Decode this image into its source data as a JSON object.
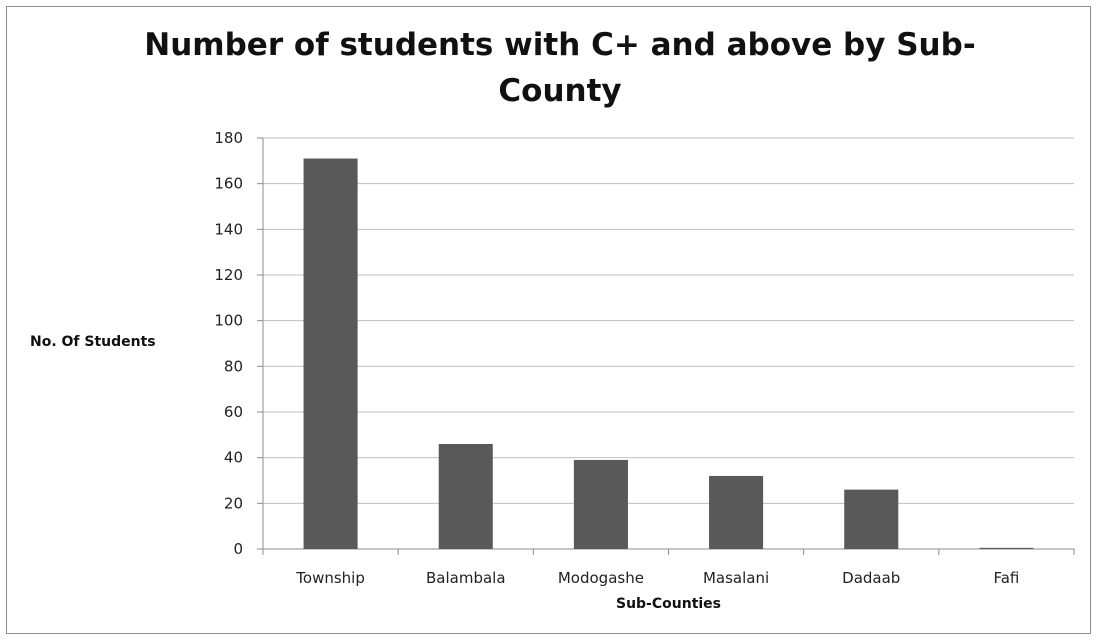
{
  "chart_data": {
    "type": "bar",
    "title": "Number of students with C+ and above by Sub-County",
    "title_lines": [
      "Number of students with C+ and above by Sub-",
      "County"
    ],
    "xlabel": "Sub-Counties",
    "ylabel": "No. Of Students",
    "categories": [
      "Township",
      "Balambala",
      "Modogashe",
      "Masalani",
      "Dadaab",
      "Fafi"
    ],
    "values": [
      171,
      46,
      39,
      32,
      26,
      0.5
    ],
    "ylim": [
      0,
      180
    ],
    "yticks": [
      "0",
      "20",
      "40",
      "60",
      "80",
      "100",
      "120",
      "140",
      "160",
      "180"
    ],
    "ytick_values": [
      0,
      20,
      40,
      60,
      80,
      100,
      120,
      140,
      160,
      180
    ],
    "grid": true,
    "legend": "none",
    "bar_color": "#595959",
    "grid_color": "#bfbfbf"
  }
}
